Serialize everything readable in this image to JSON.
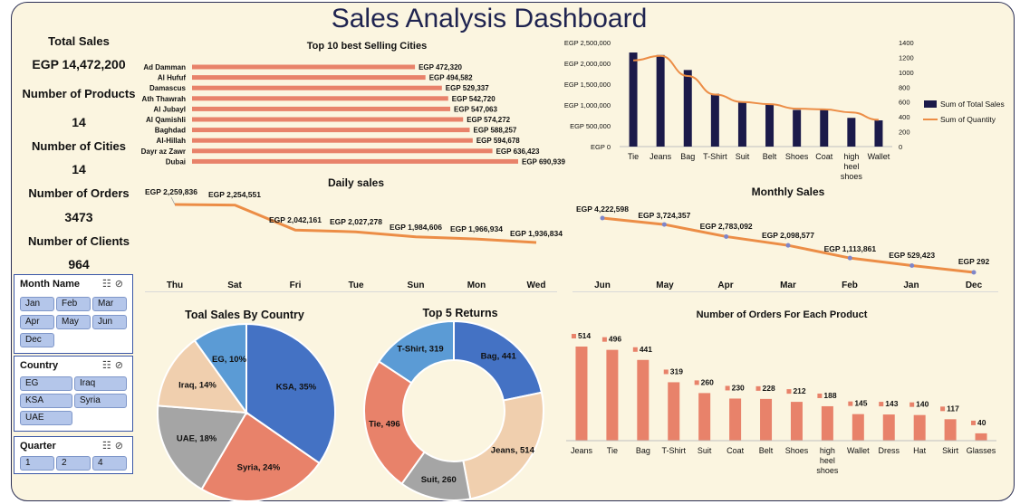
{
  "title": "Sales Analysis Dashboard",
  "kpis": [
    {
      "label": "Total Sales",
      "value": "EGP 14,472,200"
    },
    {
      "label": "Number of Products",
      "value": "14"
    },
    {
      "label": "Number of Cities",
      "value": "14"
    },
    {
      "label": "Number of Orders",
      "value": "3473"
    },
    {
      "label": "Number of Clients",
      "value": "964"
    }
  ],
  "slicers": {
    "month": {
      "title": "Month Name",
      "items": [
        "Jan",
        "Feb",
        "Mar",
        "Apr",
        "May",
        "Jun",
        "Dec"
      ]
    },
    "country": {
      "title": "Country",
      "items": [
        "EG",
        "Iraq",
        "KSA",
        "Syria",
        "UAE"
      ]
    },
    "quarter": {
      "title": "Quarter",
      "items": [
        "1",
        "2",
        "4"
      ]
    }
  },
  "colors": {
    "bar_orange": "#e8826a",
    "navy": "#1b1a4a",
    "line_orange": "#ec8d46",
    "point": "#7f86c9"
  },
  "chart_data": [
    {
      "id": "cities",
      "type": "bar",
      "orientation": "horizontal",
      "title": "Top 10 best Selling Cities",
      "categories": [
        "Ad Damman",
        "Al Hufuf",
        "Damascus",
        "Ath Thawrah",
        "Al Jubayl",
        "Al Qamishli",
        "Baghdad",
        "Al-Hillah",
        "Dayr az Zawr",
        "Dubai"
      ],
      "values": [
        472320,
        494582,
        529337,
        542720,
        547063,
        574272,
        588257,
        594678,
        636423,
        690939
      ],
      "labels": [
        "EGP 472,320",
        "EGP 494,582",
        "EGP 529,337",
        "EGP 542,720",
        "EGP 547,063",
        "EGP 574,272",
        "EGP 588,257",
        "EGP 594,678",
        "EGP 636,423",
        "EGP 690,939"
      ]
    },
    {
      "id": "combo",
      "type": "bar",
      "categories": [
        "Tie",
        "Jeans",
        "Bag",
        "T-Shirt",
        "Suit",
        "Belt",
        "Shoes",
        "Coat",
        "high heel shoes",
        "Wallet"
      ],
      "series": [
        {
          "name": "Sum of Total Sales",
          "type": "bar",
          "values": [
            2260000,
            2200000,
            1840000,
            1270000,
            1060000,
            1010000,
            880000,
            880000,
            690000,
            630000
          ]
        },
        {
          "name": "Sum of Quantity",
          "type": "line",
          "axis": "right",
          "values": [
            1160,
            1220,
            950,
            700,
            600,
            570,
            510,
            500,
            460,
            360
          ]
        }
      ],
      "y_ticks": [
        "EGP 0",
        "EGP 500,000",
        "EGP 1,000,000",
        "EGP 1,500,000",
        "EGP 2,000,000",
        "EGP 2,500,000"
      ],
      "y2_ticks": [
        "0",
        "200",
        "400",
        "600",
        "800",
        "1000",
        "1200",
        "1400"
      ],
      "ylim": [
        0,
        2500000
      ],
      "y2lim": [
        0,
        1400
      ],
      "legend": "right"
    },
    {
      "id": "daily",
      "type": "line",
      "title": "Daily sales",
      "categories": [
        "Thu",
        "Sat",
        "Fri",
        "Tue",
        "Sun",
        "Mon",
        "Wed"
      ],
      "values": [
        2259836,
        2254551,
        2042161,
        2027278,
        1984606,
        1966934,
        1936834
      ],
      "labels": [
        "EGP 2,259,836",
        "EGP 2,254,551",
        "EGP 2,042,161",
        "EGP 2,027,278",
        "EGP 1,984,606",
        "EGP 1,966,934",
        "EGP 1,936,834"
      ]
    },
    {
      "id": "monthly",
      "type": "line",
      "title": "Monthly Sales",
      "categories": [
        "Jun",
        "May",
        "Apr",
        "Mar",
        "Feb",
        "Jan",
        "Dec"
      ],
      "values": [
        4222598,
        3724357,
        2783092,
        2098577,
        1113861,
        529423,
        292
      ],
      "labels": [
        "EGP 4,222,598",
        "EGP 3,724,357",
        "EGP 2,783,092",
        "EGP 2,098,577",
        "EGP 1,113,861",
        "EGP 529,423",
        "EGP 292"
      ]
    },
    {
      "id": "country",
      "type": "pie",
      "title": "Toal Sales By Country",
      "categories": [
        "KSA",
        "Syria",
        "UAE",
        "Iraq",
        "EG"
      ],
      "values": [
        35,
        24,
        18,
        14,
        10
      ],
      "labels": [
        "KSA, 35%",
        "Syria, 24%",
        "UAE, 18%",
        "Iraq, 14%",
        "EG, 10%"
      ],
      "colors": [
        "#4472c4",
        "#e8826a",
        "#a5a5a5",
        "#f0cfae",
        "#5b9bd5"
      ]
    },
    {
      "id": "returns",
      "type": "pie",
      "title": "Top 5 Returns",
      "categories": [
        "Bag",
        "Jeans",
        "Suit",
        "Tie",
        "T-Shirt"
      ],
      "values": [
        441,
        514,
        260,
        496,
        319
      ],
      "labels": [
        "Bag, 441",
        "Jeans, 514",
        "Suit, 260",
        "Tie, 496",
        "T-Shirt, 319"
      ],
      "colors": [
        "#4472c4",
        "#f0cfae",
        "#a5a5a5",
        "#e8826a",
        "#5b9bd5"
      ]
    },
    {
      "id": "orders",
      "type": "bar",
      "title": "Number of Orders For Each Product",
      "categories": [
        "Jeans",
        "Tie",
        "Bag",
        "T-Shirt",
        "Suit",
        "Coat",
        "Belt",
        "Shoes",
        "high heel shoes",
        "Wallet",
        "Dress",
        "Hat",
        "Skirt",
        "Glasses"
      ],
      "values": [
        514,
        496,
        441,
        319,
        260,
        230,
        228,
        212,
        188,
        145,
        143,
        140,
        117,
        40
      ]
    }
  ]
}
